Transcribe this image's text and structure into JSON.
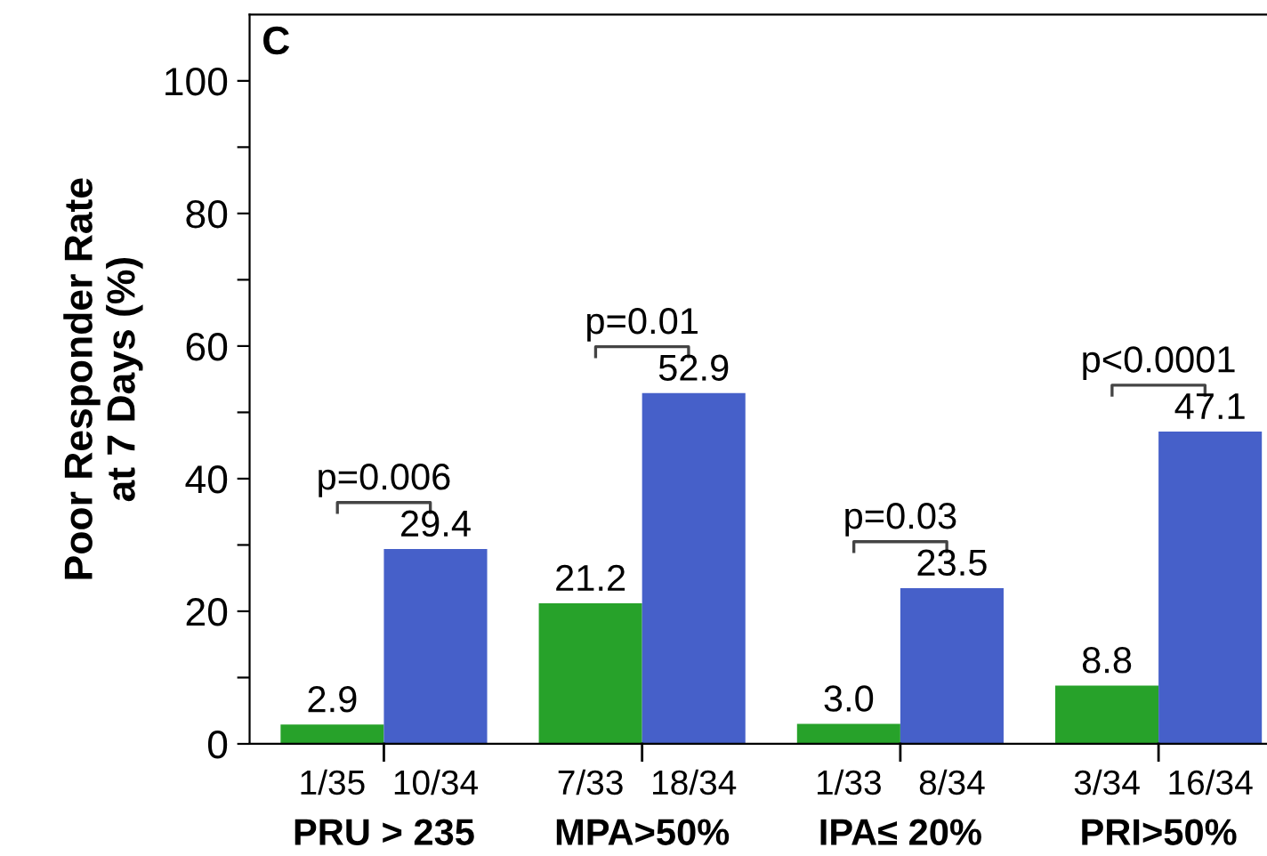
{
  "chart_data": {
    "type": "bar",
    "ylabel": "Poor Responder Rate\nat 7 Days (%)",
    "categories": [
      "PRU > 235",
      "MPA>50%",
      "IPA≤ 20%",
      "PRI>50%"
    ],
    "series": [
      {
        "color": "#27a22a",
        "values": [
          2.9,
          21.2,
          3.0,
          8.8
        ],
        "value_labels": [
          "2.9",
          "21.2",
          "3.0",
          "8.8"
        ]
      },
      {
        "color": "#4660c9",
        "values": [
          29.4,
          52.9,
          23.5,
          47.1
        ],
        "value_labels": [
          "29.4",
          "52.9",
          "23.5",
          "47.1"
        ]
      }
    ],
    "ylim": [
      0,
      110
    ],
    "yticks": [
      0,
      {
        "value": 10,
        "label": null
      },
      20,
      {
        "value": 30,
        "label": null
      },
      40,
      {
        "value": 50,
        "label": null
      },
      60,
      {
        "value": 70,
        "label": null
      },
      80,
      {
        "value": 90,
        "label": null
      },
      100
    ],
    "grid": false,
    "legend": false,
    "annotations": [
      "C",
      "p=0.006",
      "p=0.01",
      "p=0.03",
      "p<0.0001",
      "1/35",
      "10/34",
      "7/33",
      "18/34",
      "1/33",
      "8/34",
      "3/34",
      "16/34"
    ]
  }
}
